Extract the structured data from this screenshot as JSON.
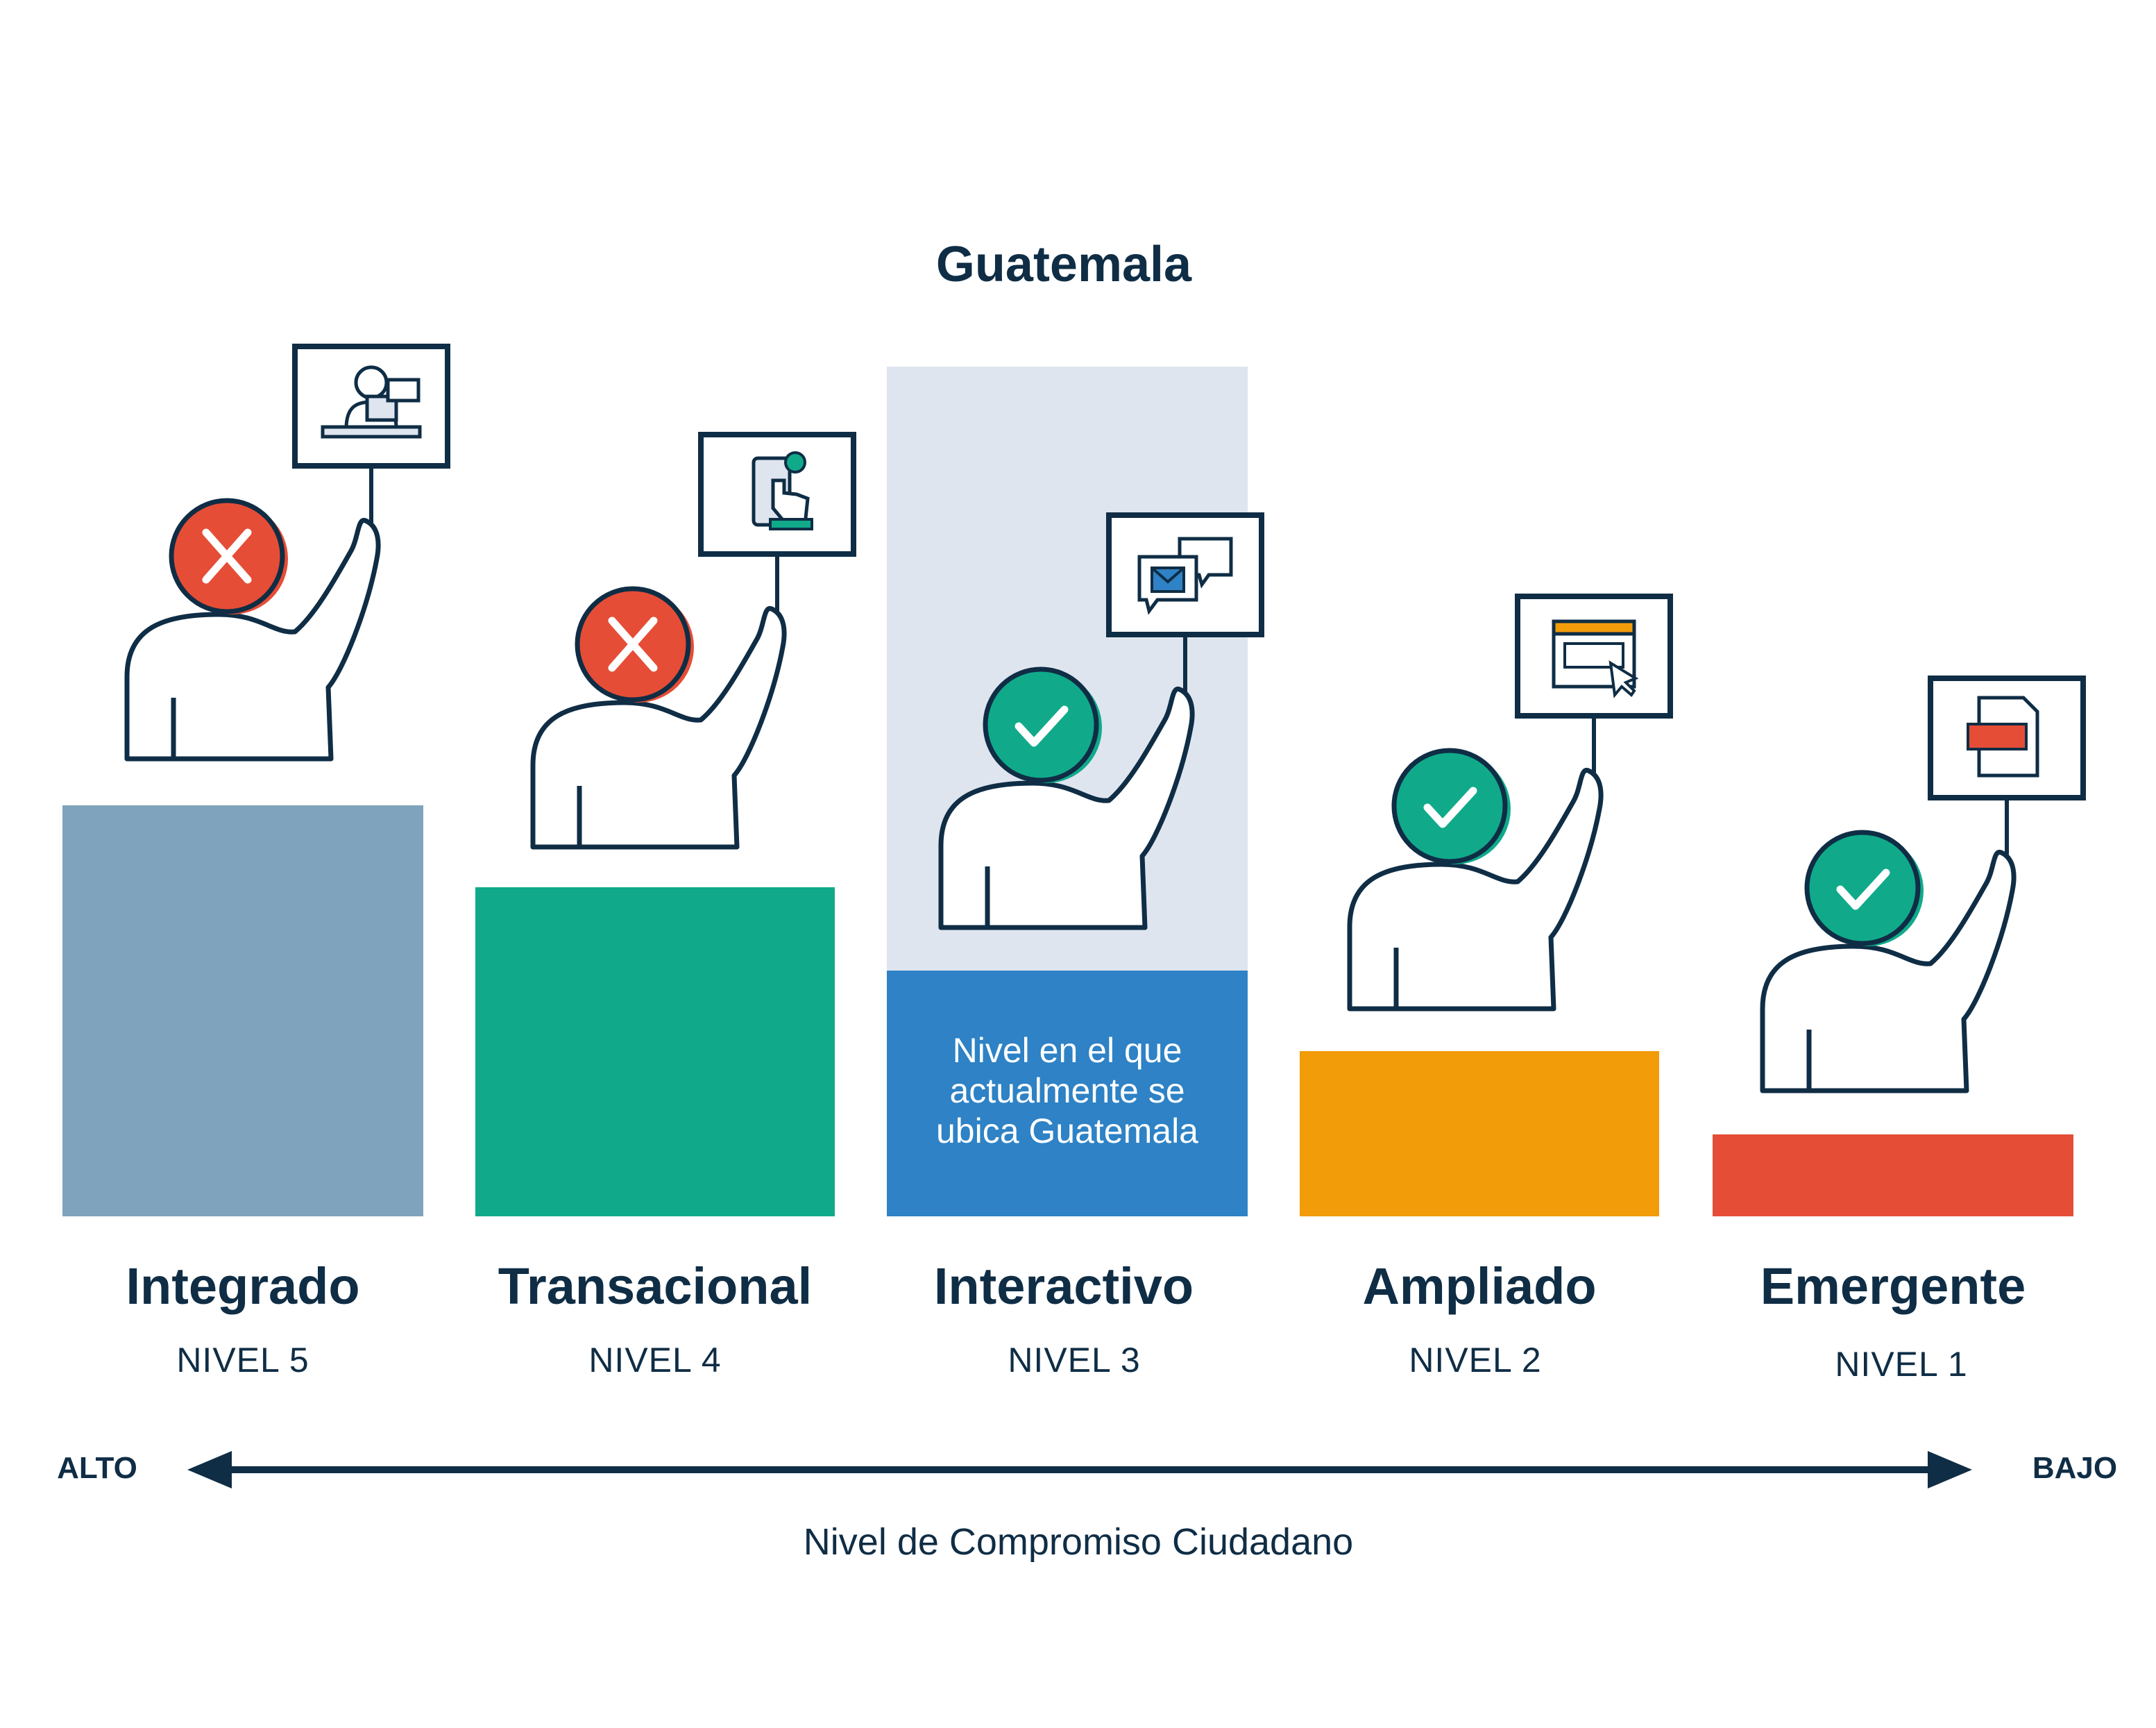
{
  "title": "Guatemala",
  "current_note": [
    "Nivel en el que",
    "actualmente se",
    "ubica Guatemala"
  ],
  "levels": [
    {
      "name": "Integrado",
      "label": "NIVEL 5",
      "color": "#7fa3bc",
      "status": "cross",
      "icon": "citizen-service-desk-icon"
    },
    {
      "name": "Transacional",
      "label": "NIVEL 4",
      "color": "#10aa8b",
      "status": "cross",
      "icon": "online-payment-icon"
    },
    {
      "name": "Interactivo",
      "label": "NIVEL 3",
      "color": "#2e82c5",
      "status": "check",
      "icon": "email-chat-icon"
    },
    {
      "name": "Ampliado",
      "label": "NIVEL 2",
      "color": "#f29c0a",
      "status": "check",
      "icon": "web-browser-icon"
    },
    {
      "name": "Emergente",
      "label": "NIVEL 1",
      "color": "#e64d36",
      "status": "check",
      "icon": "pdf-document-icon"
    }
  ],
  "axis": {
    "high": "ALTO",
    "low": "BAJO",
    "label": "Nivel de Compromiso Ciudadano"
  },
  "colors": {
    "navy": "#0f2d45",
    "cross": "#e64d36",
    "check": "#10aa8b",
    "highlight": "#dfe5ef"
  }
}
